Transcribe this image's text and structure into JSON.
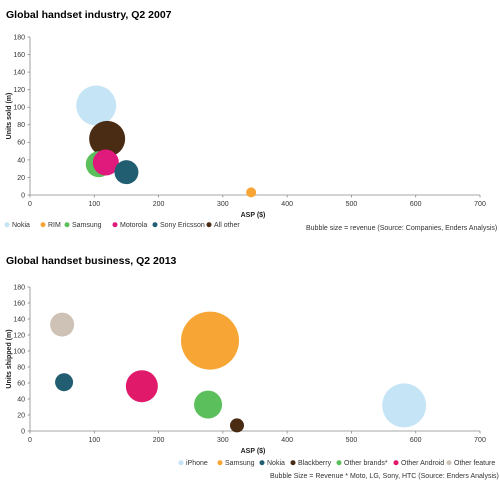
{
  "chart_data": [
    {
      "type": "scatter",
      "title": "Global handset industry, Q2 2007",
      "xlabel": "ASP ($)",
      "ylabel": "Units sold (m)",
      "xlim": [
        0,
        700
      ],
      "ylim": [
        0,
        180
      ],
      "xticks": [
        "0",
        "100",
        "200",
        "300",
        "400",
        "500",
        "600",
        "700"
      ],
      "yticks": [
        "0",
        "20",
        "40",
        "60",
        "80",
        "100",
        "120",
        "140",
        "160",
        "180"
      ],
      "grid": false,
      "legend_position": "bottom",
      "note": "Bubble size = revenue (Source:  Companies, Enders Analysis)",
      "series": [
        {
          "name": "Nokia",
          "color": "#c5e4f6",
          "x": 103,
          "y": 102,
          "size": 20
        },
        {
          "name": "RIM",
          "color": "#f7a535",
          "x": 344,
          "y": 3,
          "size": 5
        },
        {
          "name": "Samsung",
          "color": "#5bbf5b",
          "x": 107,
          "y": 35,
          "size": 13
        },
        {
          "name": "Motorola",
          "color": "#e0197d",
          "x": 118,
          "y": 37,
          "size": 13
        },
        {
          "name": "Sony Ericsson",
          "color": "#225e72",
          "x": 150,
          "y": 26,
          "size": 12
        },
        {
          "name": "All other",
          "color": "#4a2b13",
          "x": 120,
          "y": 64,
          "size": 18
        }
      ]
    },
    {
      "type": "scatter",
      "title": "Global handset business, Q2 2013",
      "xlabel": "ASP ($)",
      "ylabel": "Units shipped (m)",
      "xlim": [
        0,
        700
      ],
      "ylim": [
        0,
        180
      ],
      "xticks": [
        "0",
        "100",
        "200",
        "300",
        "400",
        "500",
        "600",
        "700"
      ],
      "yticks": [
        "0",
        "20",
        "40",
        "60",
        "80",
        "100",
        "120",
        "140",
        "160",
        "180"
      ],
      "grid": false,
      "legend_position": "bottom",
      "note": "Bubble Size = Revenue * Moto, LG, Sony, HTC (Source: Enders Analysis)",
      "series": [
        {
          "name": "iPhone",
          "color": "#c5e4f6",
          "x": 582,
          "y": 32,
          "size": 22
        },
        {
          "name": "Samsung",
          "color": "#f7a535",
          "x": 280,
          "y": 113,
          "size": 29
        },
        {
          "name": "Nokia",
          "color": "#225e72",
          "x": 53,
          "y": 61,
          "size": 9
        },
        {
          "name": "Blackberry",
          "color": "#4a2b13",
          "x": 322,
          "y": 7,
          "size": 7
        },
        {
          "name": "Other brands*",
          "color": "#5bbf5b",
          "x": 277,
          "y": 33,
          "size": 14
        },
        {
          "name": "Other Android",
          "color": "#e0196b",
          "x": 174,
          "y": 56,
          "size": 16
        },
        {
          "name": "Other feature",
          "color": "#cdc2b5",
          "x": 50,
          "y": 133,
          "size": 12
        }
      ]
    }
  ]
}
